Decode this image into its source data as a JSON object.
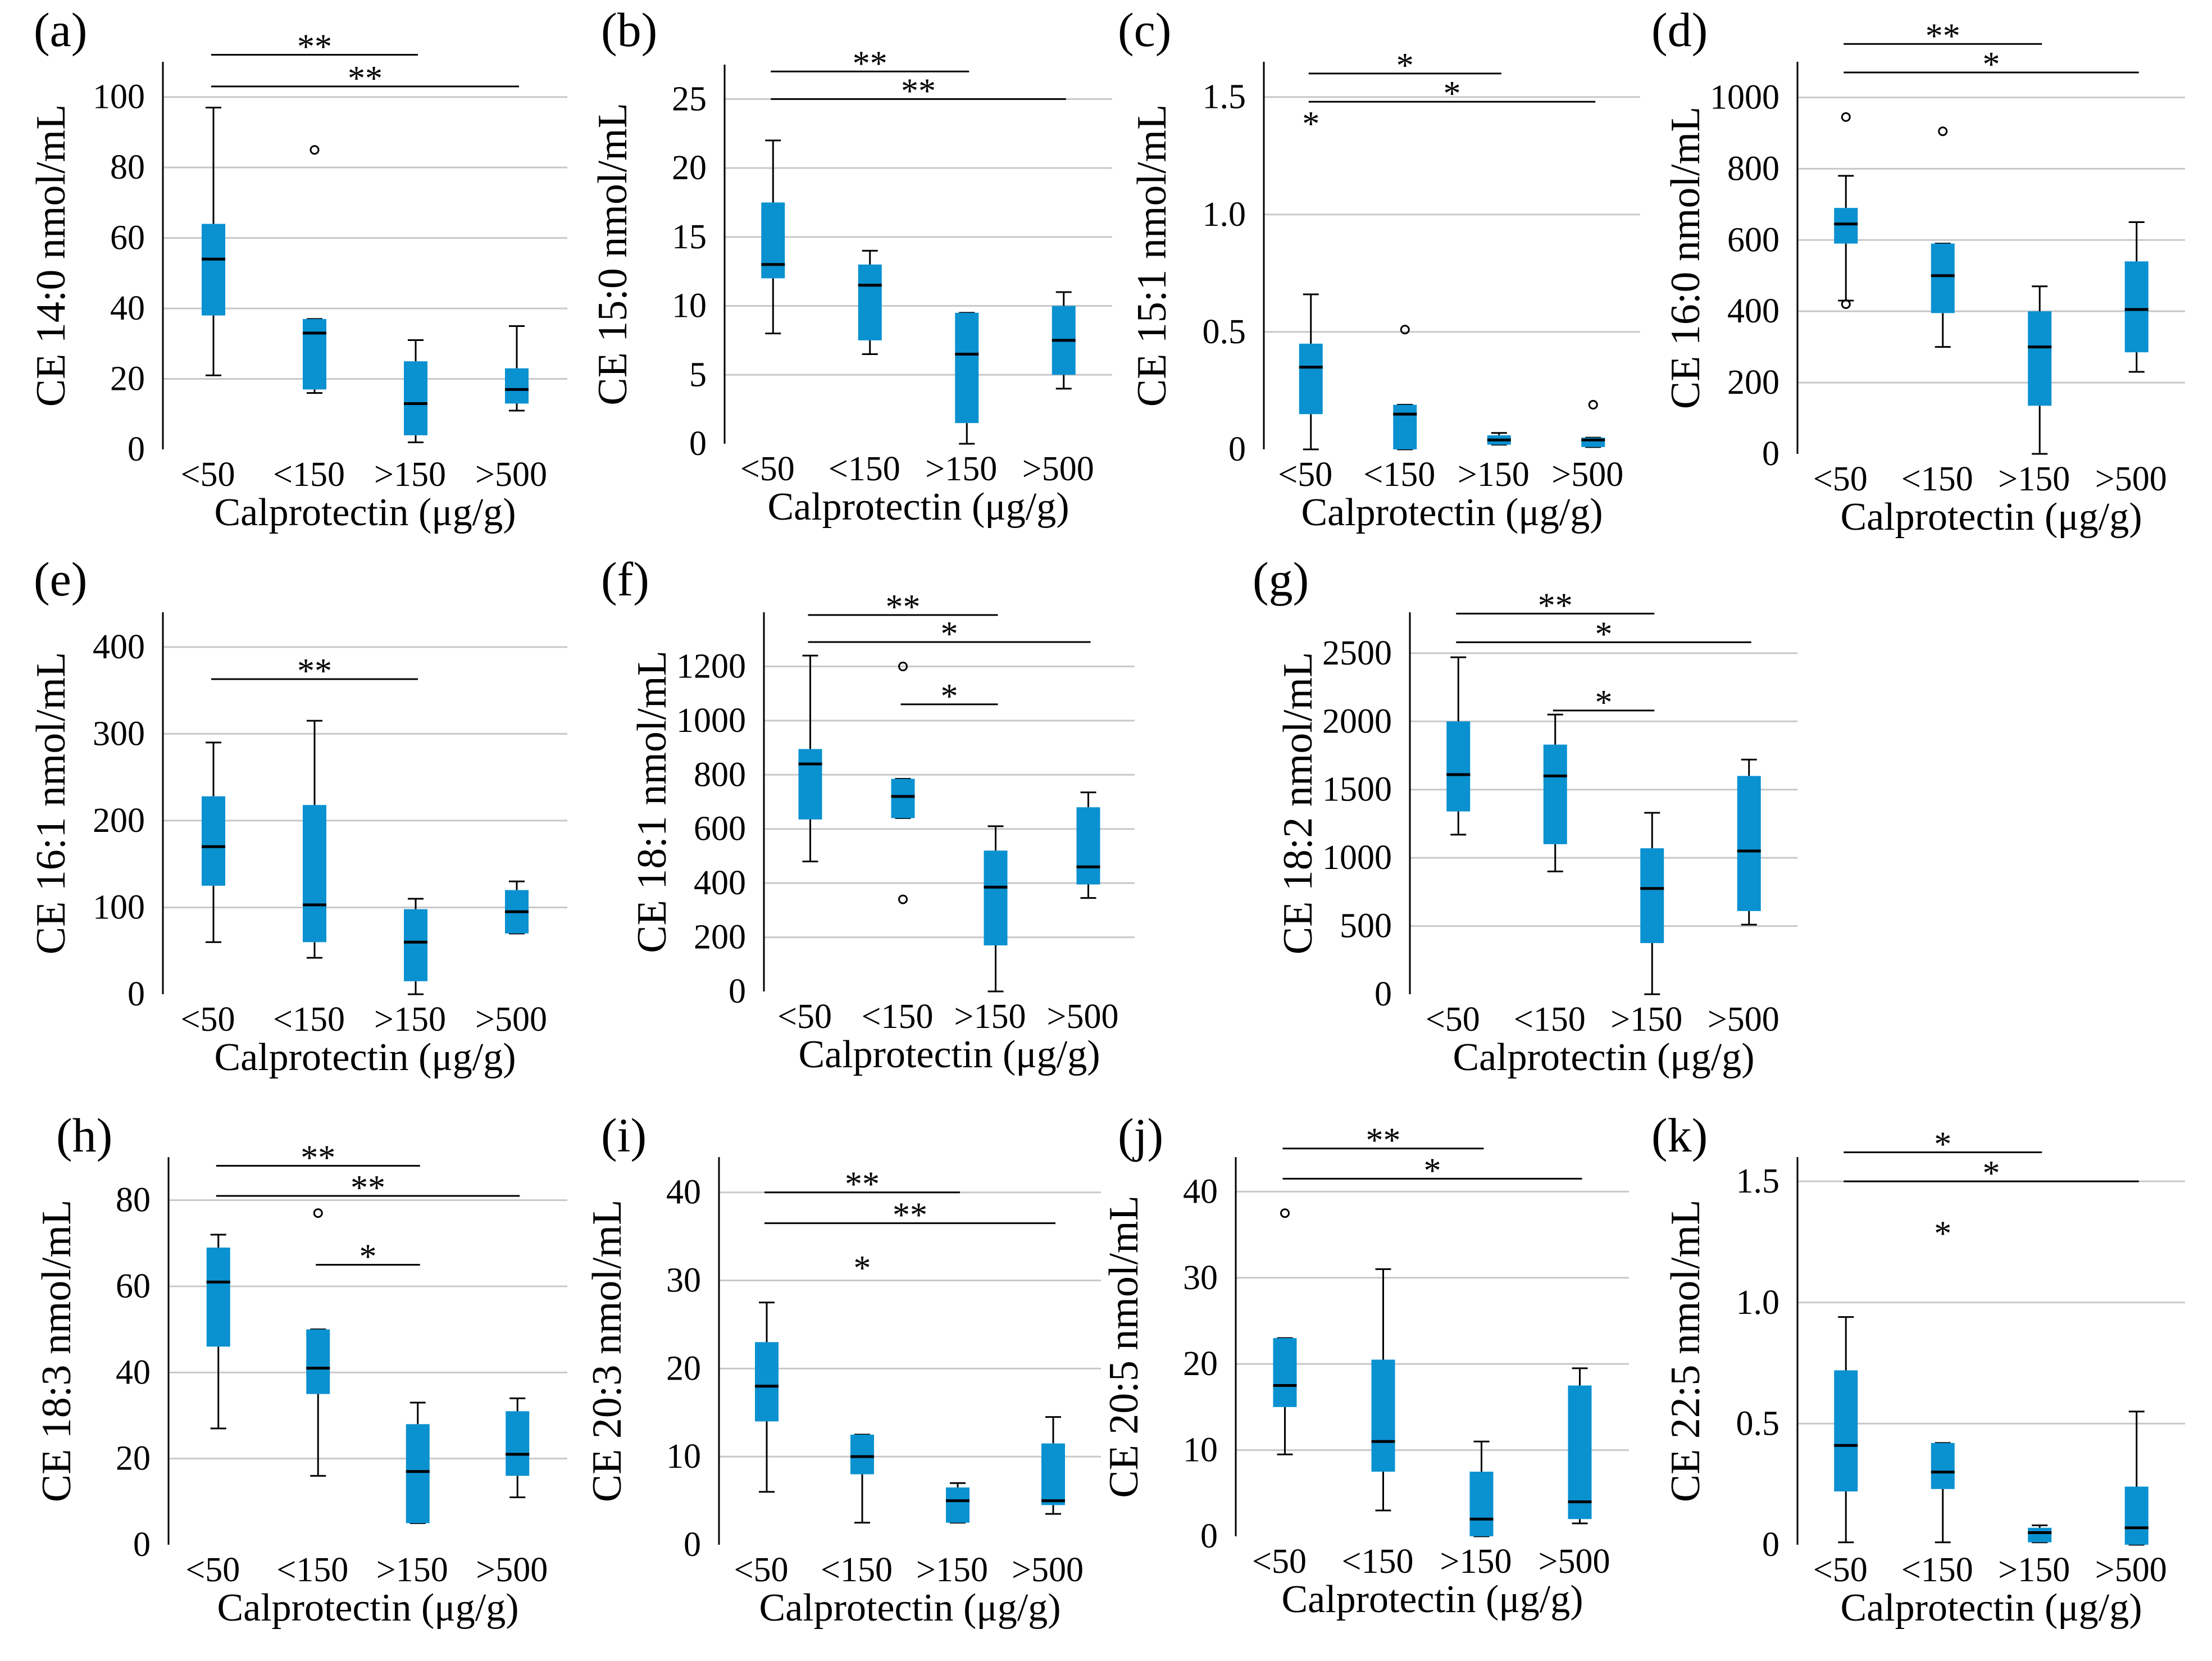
{
  "figure": {
    "box_color": "#0a91d0",
    "grid_color": "#c8c8c8",
    "panels_order": [
      "a",
      "b",
      "c",
      "d",
      "e",
      "f",
      "g",
      "h",
      "i",
      "j",
      "k"
    ]
  },
  "chart_data": [
    {
      "id": "a",
      "letter": "(a)",
      "type": "box",
      "ylabel": "CE 14:0 nmol/mL",
      "xlabel": "Calprotectin (μg/g)",
      "categories": [
        "<50",
        "<150",
        ">150",
        ">500"
      ],
      "yticks": [
        0,
        20,
        40,
        60,
        80,
        100
      ],
      "ylim": [
        0,
        110
      ],
      "boxes": [
        {
          "whisker_low": 21,
          "q1": 38,
          "median": 54,
          "q3": 64,
          "whisker_high": 97,
          "outliers": []
        },
        {
          "whisker_low": 16,
          "q1": 17,
          "median": 33,
          "q3": 37,
          "whisker_high": 37,
          "outliers": [
            {
              "value": 85,
              "marker": "circle"
            }
          ]
        },
        {
          "whisker_low": 2,
          "q1": 4,
          "median": 13,
          "q3": 25,
          "whisker_high": 31,
          "outliers": []
        },
        {
          "whisker_low": 11,
          "q1": 13,
          "median": 17,
          "q3": 23,
          "whisker_high": 35,
          "outliers": []
        }
      ],
      "brackets": [
        {
          "from": 0,
          "to": 2,
          "y": 112,
          "label": "**"
        },
        {
          "from": 0,
          "to": 3,
          "y": 103,
          "label": "**"
        }
      ]
    },
    {
      "id": "b",
      "letter": "(b)",
      "type": "box",
      "ylabel": "CE 15:0 nmol/mL",
      "xlabel": "Calprotectin (μg/g)",
      "categories": [
        "<50",
        "<150",
        ">150",
        ">500"
      ],
      "yticks": [
        0,
        5,
        10,
        15,
        20,
        25
      ],
      "ylim": [
        0,
        27.5
      ],
      "boxes": [
        {
          "whisker_low": 8,
          "q1": 12,
          "median": 13,
          "q3": 17.5,
          "whisker_high": 22,
          "outliers": []
        },
        {
          "whisker_low": 6.5,
          "q1": 7.5,
          "median": 11.5,
          "q3": 13,
          "whisker_high": 14,
          "outliers": []
        },
        {
          "whisker_low": 0,
          "q1": 1.5,
          "median": 6.5,
          "q3": 9.5,
          "whisker_high": 9.5,
          "outliers": []
        },
        {
          "whisker_low": 4,
          "q1": 5,
          "median": 7.5,
          "q3": 10,
          "whisker_high": 11,
          "outliers": []
        }
      ],
      "brackets": [
        {
          "from": 0,
          "to": 2,
          "y": 27,
          "label": "**"
        },
        {
          "from": 0,
          "to": 3,
          "y": 25,
          "label": "**"
        }
      ]
    },
    {
      "id": "c",
      "letter": "(c)",
      "type": "box",
      "ylabel": "CE 15:1 nmol/mL",
      "xlabel": "Calprotectin (μg/g)",
      "categories": [
        "<50",
        "<150",
        ">150",
        ">500"
      ],
      "yticks": [
        0,
        0.5,
        1.0,
        1.5
      ],
      "ytick_labels": [
        "0",
        "0.5",
        "1.0",
        "1.5"
      ],
      "ylim": [
        0,
        1.65
      ],
      "boxes": [
        {
          "whisker_low": 0,
          "q1": 0.15,
          "median": 0.35,
          "q3": 0.45,
          "whisker_high": 0.66,
          "outliers": [
            {
              "value": 1.37,
              "marker": "star"
            }
          ]
        },
        {
          "whisker_low": 0,
          "q1": 0,
          "median": 0.15,
          "q3": 0.19,
          "whisker_high": 0.19,
          "outliers": [
            {
              "value": 0.51,
              "marker": "circle"
            }
          ]
        },
        {
          "whisker_low": 0.02,
          "q1": 0.02,
          "median": 0.04,
          "q3": 0.06,
          "whisker_high": 0.07,
          "outliers": []
        },
        {
          "whisker_low": 0.01,
          "q1": 0.01,
          "median": 0.04,
          "q3": 0.05,
          "whisker_high": 0.05,
          "outliers": [
            {
              "value": 0.19,
              "marker": "circle"
            }
          ]
        }
      ],
      "brackets": [
        {
          "from": 0,
          "to": 2,
          "y": 1.6,
          "label": "*"
        },
        {
          "from": 0,
          "to": 3,
          "y": 1.48,
          "label": "*"
        }
      ]
    },
    {
      "id": "d",
      "letter": "(d)",
      "type": "box",
      "ylabel": "CE 16:0 nmol/mL",
      "xlabel": "Calprotectin (μg/g)",
      "categories": [
        "<50",
        "<150",
        ">150",
        ">500"
      ],
      "yticks": [
        0,
        200,
        400,
        600,
        800,
        1000
      ],
      "ylim": [
        0,
        1100
      ],
      "boxes": [
        {
          "whisker_low": 430,
          "q1": 590,
          "median": 645,
          "q3": 690,
          "whisker_high": 780,
          "outliers": [
            {
              "value": 945,
              "marker": "circle"
            },
            {
              "value": 420,
              "marker": "circle"
            }
          ]
        },
        {
          "whisker_low": 300,
          "q1": 395,
          "median": 500,
          "q3": 590,
          "whisker_high": 590,
          "outliers": [
            {
              "value": 905,
              "marker": "circle"
            }
          ]
        },
        {
          "whisker_low": 0,
          "q1": 135,
          "median": 300,
          "q3": 400,
          "whisker_high": 470,
          "outliers": []
        },
        {
          "whisker_low": 230,
          "q1": 285,
          "median": 405,
          "q3": 540,
          "whisker_high": 650,
          "outliers": []
        }
      ],
      "brackets": [
        {
          "from": 0,
          "to": 2,
          "y": 1150,
          "label": "**"
        },
        {
          "from": 0,
          "to": 3,
          "y": 1070,
          "label": "*"
        }
      ]
    },
    {
      "id": "e",
      "letter": "(e)",
      "type": "box",
      "ylabel": "CE 16:1 nmol/mL",
      "xlabel": "Calprotectin (μg/g)",
      "categories": [
        "<50",
        "<150",
        ">150",
        ">500"
      ],
      "yticks": [
        0,
        100,
        200,
        300,
        400
      ],
      "ylim": [
        0,
        440
      ],
      "boxes": [
        {
          "whisker_low": 60,
          "q1": 125,
          "median": 170,
          "q3": 228,
          "whisker_high": 290,
          "outliers": []
        },
        {
          "whisker_low": 42,
          "q1": 60,
          "median": 103,
          "q3": 218,
          "whisker_high": 315,
          "outliers": []
        },
        {
          "whisker_low": 0,
          "q1": 15,
          "median": 60,
          "q3": 98,
          "whisker_high": 110,
          "outliers": []
        },
        {
          "whisker_low": 70,
          "q1": 70,
          "median": 95,
          "q3": 120,
          "whisker_high": 130,
          "outliers": []
        }
      ],
      "brackets": [
        {
          "from": 0,
          "to": 2,
          "y": 363,
          "label": "**"
        }
      ]
    },
    {
      "id": "f",
      "letter": "(f)",
      "type": "box",
      "ylabel": "CE 18:1 nmol/mL",
      "xlabel": "Calprotectin (μg/g)",
      "categories": [
        "<50",
        "<150",
        ">150",
        ">500"
      ],
      "yticks": [
        0,
        200,
        400,
        600,
        800,
        1000,
        1200
      ],
      "ylim": [
        0,
        1400
      ],
      "boxes": [
        {
          "whisker_low": 480,
          "q1": 635,
          "median": 840,
          "q3": 895,
          "whisker_high": 1240,
          "outliers": []
        },
        {
          "whisker_low": 640,
          "q1": 640,
          "median": 720,
          "q3": 785,
          "whisker_high": 785,
          "outliers": [
            {
              "value": 1200,
              "marker": "circle"
            },
            {
              "value": 340,
              "marker": "circle"
            }
          ]
        },
        {
          "whisker_low": 0,
          "q1": 170,
          "median": 385,
          "q3": 520,
          "whisker_high": 610,
          "outliers": []
        },
        {
          "whisker_low": 345,
          "q1": 395,
          "median": 460,
          "q3": 680,
          "whisker_high": 735,
          "outliers": []
        }
      ],
      "brackets": [
        {
          "from": 0,
          "to": 2,
          "y": 1390,
          "label": "**"
        },
        {
          "from": 0,
          "to": 3,
          "y": 1290,
          "label": "*"
        },
        {
          "from": 1,
          "to": 2,
          "y": 1060,
          "label": "*"
        }
      ]
    },
    {
      "id": "g",
      "letter": "(g)",
      "type": "box",
      "ylabel": "CE 18:2 nmol/mL",
      "xlabel": "Calprotectin (μg/g)",
      "categories": [
        "<50",
        "<150",
        ">150",
        ">500"
      ],
      "yticks": [
        0,
        500,
        1000,
        1500,
        2000,
        2500
      ],
      "ylim": [
        0,
        2800
      ],
      "boxes": [
        {
          "whisker_low": 1170,
          "q1": 1340,
          "median": 1610,
          "q3": 2000,
          "whisker_high": 2470,
          "outliers": []
        },
        {
          "whisker_low": 900,
          "q1": 1100,
          "median": 1600,
          "q3": 1830,
          "whisker_high": 2050,
          "outliers": []
        },
        {
          "whisker_low": 0,
          "q1": 375,
          "median": 775,
          "q3": 1070,
          "whisker_high": 1330,
          "outliers": []
        },
        {
          "whisker_low": 510,
          "q1": 610,
          "median": 1050,
          "q3": 1600,
          "whisker_high": 1720,
          "outliers": []
        }
      ],
      "brackets": [
        {
          "from": 0,
          "to": 2,
          "y": 2790,
          "label": "**"
        },
        {
          "from": 0,
          "to": 3,
          "y": 2580,
          "label": "*"
        },
        {
          "from": 1,
          "to": 2,
          "y": 2080,
          "label": "*"
        }
      ]
    },
    {
      "id": "h",
      "letter": "(h)",
      "type": "box",
      "ylabel": "CE 18:3 nmol/mL",
      "xlabel": "Calprotectin (μg/g)",
      "categories": [
        "<50",
        "<150",
        ">150",
        ">500"
      ],
      "yticks": [
        0,
        20,
        40,
        60,
        80
      ],
      "ylim": [
        0,
        90
      ],
      "boxes": [
        {
          "whisker_low": 27,
          "q1": 46,
          "median": 61,
          "q3": 69,
          "whisker_high": 72,
          "outliers": []
        },
        {
          "whisker_low": 16,
          "q1": 35,
          "median": 41,
          "q3": 50,
          "whisker_high": 50,
          "outliers": [
            {
              "value": 77,
              "marker": "circle"
            }
          ]
        },
        {
          "whisker_low": 5,
          "q1": 5,
          "median": 17,
          "q3": 28,
          "whisker_high": 33,
          "outliers": []
        },
        {
          "whisker_low": 11,
          "q1": 16,
          "median": 21,
          "q3": 31,
          "whisker_high": 34,
          "outliers": []
        }
      ],
      "brackets": [
        {
          "from": 0,
          "to": 2,
          "y": 88,
          "label": "**"
        },
        {
          "from": 0,
          "to": 3,
          "y": 81,
          "label": "**"
        },
        {
          "from": 1,
          "to": 2,
          "y": 65,
          "label": "*"
        }
      ]
    },
    {
      "id": "i",
      "letter": "(i)",
      "type": "box",
      "ylabel": "CE 20:3 nmol/mL",
      "xlabel": "Calprotectin (μg/g)",
      "categories": [
        "<50",
        "<150",
        ">150",
        ">500"
      ],
      "yticks": [
        0,
        10,
        20,
        30,
        40
      ],
      "ylim": [
        0,
        44
      ],
      "boxes": [
        {
          "whisker_low": 6,
          "q1": 14,
          "median": 18,
          "q3": 23,
          "whisker_high": 27.5,
          "outliers": []
        },
        {
          "whisker_low": 2.5,
          "q1": 8,
          "median": 10,
          "q3": 12.5,
          "whisker_high": 12.5,
          "outliers": [
            {
              "value": 31,
              "marker": "star"
            }
          ]
        },
        {
          "whisker_low": 2.5,
          "q1": 2.5,
          "median": 5,
          "q3": 6.5,
          "whisker_high": 7,
          "outliers": []
        },
        {
          "whisker_low": 3.5,
          "q1": 4.5,
          "median": 5,
          "q3": 11.5,
          "whisker_high": 14.5,
          "outliers": []
        }
      ],
      "brackets": [
        {
          "from": 0,
          "to": 2,
          "y": 40,
          "label": "**"
        },
        {
          "from": 0,
          "to": 3,
          "y": 36.5,
          "label": "**"
        }
      ]
    },
    {
      "id": "j",
      "letter": "(j)",
      "type": "box",
      "ylabel": "CE 20:5 nmol/mL",
      "xlabel": "Calprotectin (μg/g)",
      "categories": [
        "<50",
        "<150",
        ">150",
        ">500"
      ],
      "yticks": [
        0,
        10,
        20,
        30,
        40
      ],
      "ylim": [
        0,
        44
      ],
      "boxes": [
        {
          "whisker_low": 9.5,
          "q1": 15,
          "median": 17.5,
          "q3": 23,
          "whisker_high": 23,
          "outliers": [
            {
              "value": 37.5,
              "marker": "circle"
            }
          ]
        },
        {
          "whisker_low": 3,
          "q1": 7.5,
          "median": 11,
          "q3": 20.5,
          "whisker_high": 31,
          "outliers": []
        },
        {
          "whisker_low": 0,
          "q1": 0,
          "median": 2,
          "q3": 7.5,
          "whisker_high": 11,
          "outliers": []
        },
        {
          "whisker_low": 1.5,
          "q1": 2,
          "median": 4,
          "q3": 17.5,
          "whisker_high": 19.5,
          "outliers": []
        }
      ],
      "brackets": [
        {
          "from": 0,
          "to": 2,
          "y": 45,
          "label": "**"
        },
        {
          "from": 0,
          "to": 3,
          "y": 41.5,
          "label": "*"
        }
      ]
    },
    {
      "id": "k",
      "letter": "(k)",
      "type": "box",
      "ylabel": "CE 22:5 nmol/mL",
      "xlabel": "Calprotectin (μg/g)",
      "categories": [
        "<50",
        "<150",
        ">150",
        ">500"
      ],
      "yticks": [
        0,
        0.5,
        1.0,
        1.5
      ],
      "ytick_labels": [
        "0",
        "0.5",
        "1.0",
        "1.5"
      ],
      "ylim": [
        0,
        1.6
      ],
      "boxes": [
        {
          "whisker_low": 0.01,
          "q1": 0.22,
          "median": 0.41,
          "q3": 0.72,
          "whisker_high": 0.94,
          "outliers": []
        },
        {
          "whisker_low": 0.01,
          "q1": 0.23,
          "median": 0.3,
          "q3": 0.42,
          "whisker_high": 0.42,
          "outliers": [
            {
              "value": 1.27,
              "marker": "star"
            }
          ]
        },
        {
          "whisker_low": 0.01,
          "q1": 0.01,
          "median": 0.05,
          "q3": 0.07,
          "whisker_high": 0.08,
          "outliers": []
        },
        {
          "whisker_low": 0,
          "q1": 0,
          "median": 0.07,
          "q3": 0.24,
          "whisker_high": 0.55,
          "outliers": []
        }
      ],
      "brackets": [
        {
          "from": 0,
          "to": 2,
          "y": 1.62,
          "label": "*"
        },
        {
          "from": 0,
          "to": 3,
          "y": 1.5,
          "label": "*"
        }
      ]
    }
  ]
}
